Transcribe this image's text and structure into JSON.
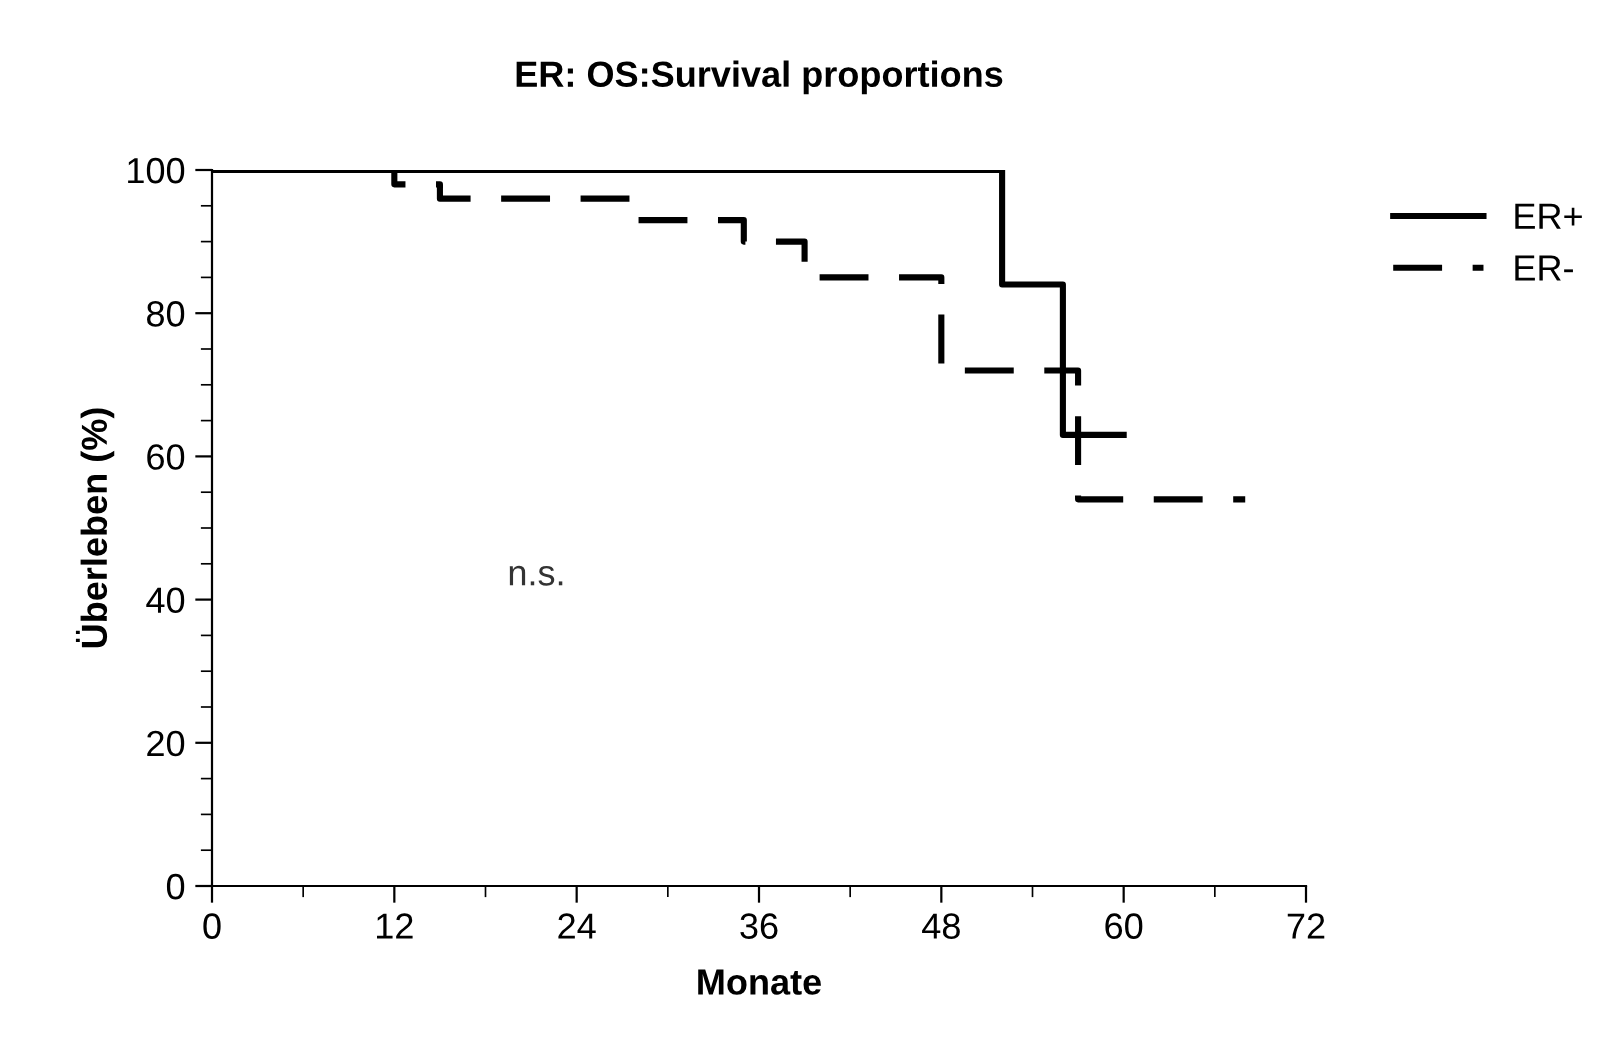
{
  "chart_data": {
    "type": "step",
    "title": "ER: OS:Survival proportions",
    "xlabel": "Monate",
    "ylabel": "Überleben (%)",
    "xlim": [
      0,
      72
    ],
    "xticks": [
      0,
      12,
      24,
      36,
      48,
      60,
      72
    ],
    "ylim": [
      0,
      100
    ],
    "yticks": [
      0,
      20,
      40,
      60,
      80,
      100
    ],
    "series": [
      {
        "name": "ER+",
        "color": "#000000",
        "line_style": "solid",
        "x": [
          0,
          52,
          56,
          60
        ],
        "values": [
          100,
          84,
          63,
          63
        ]
      },
      {
        "name": "ER-",
        "color": "#000000",
        "line_style": "dashed",
        "x": [
          0,
          12,
          15,
          28,
          35,
          39,
          48,
          57,
          68
        ],
        "values": [
          100,
          98,
          96,
          93,
          90,
          85,
          72,
          54,
          54
        ]
      }
    ],
    "annotations": [
      "n.s."
    ],
    "legend": "top right",
    "grid": false
  }
}
